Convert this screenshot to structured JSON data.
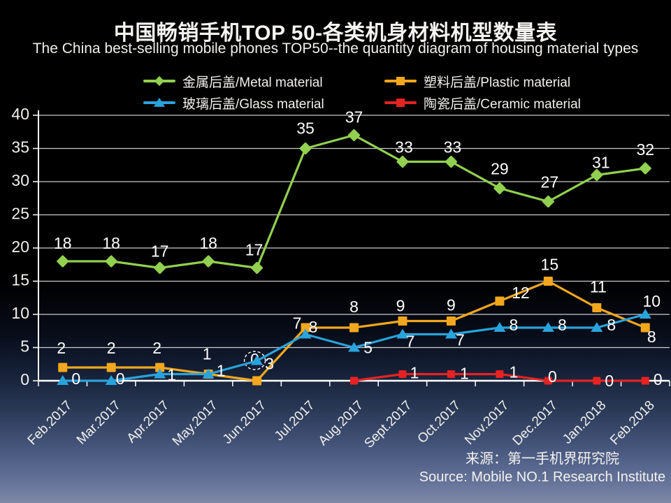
{
  "header": {
    "title": "中国畅销手机TOP 50-各类机身材料机型数量表",
    "subtitle": "The China best-selling mobile phones TOP50--the quantity diagram of housing material types"
  },
  "source": {
    "line1": "来源：第一手机界研究院",
    "line2": "Source: Mobile NO.1 Research Institute"
  },
  "colors": {
    "text": "#f2f0ec",
    "grid": "#eeeeee",
    "axis": "#ffffff",
    "background_bottom": "#7d89a6"
  },
  "chart_data": {
    "type": "line",
    "title": "中国畅销手机TOP 50-各类机身材料机型数量表",
    "subtitle": "The China best-selling mobile phones TOP50--the quantity diagram of housing material types",
    "categories": [
      "Feb.2017",
      "Mar.2017",
      "Apr.2017",
      "May.2017",
      "Jun.2017",
      "Jul.2017",
      "Aug.2017",
      "Sept.2017",
      "Oct.2017",
      "Nov.2017",
      "Dec.2017",
      "Jan.2018",
      "Feb.2018"
    ],
    "ylim": [
      0,
      40
    ],
    "ytick_step": 5,
    "grid": true,
    "legend_position": "top",
    "series": [
      {
        "key": "metal",
        "name": "金属后盖/Metal material",
        "color": "#92d050",
        "marker": "diamond",
        "start_index": 0,
        "values": [
          18,
          18,
          17,
          18,
          17,
          35,
          37,
          33,
          33,
          29,
          27,
          31,
          32
        ],
        "points": [
          {
            "v": 18,
            "label": "18",
            "dx": 0,
            "dy": -24
          },
          {
            "v": 18,
            "label": "18",
            "dx": 0,
            "dy": -24
          },
          {
            "v": 17,
            "label": "17",
            "dx": 0,
            "dy": -22
          },
          {
            "v": 18,
            "label": "18",
            "dx": 0,
            "dy": -24
          },
          {
            "v": 17,
            "label": "17",
            "dx": -4,
            "dy": -24
          },
          {
            "v": 35,
            "label": "35",
            "dx": 0,
            "dy": -27
          },
          {
            "v": 37,
            "label": "37",
            "dx": 0,
            "dy": -24
          },
          {
            "v": 33,
            "label": "33",
            "dx": 2,
            "dy": -19
          },
          {
            "v": 33,
            "label": "33",
            "dx": 2,
            "dy": -19
          },
          {
            "v": 29,
            "label": "29",
            "dx": 0,
            "dy": -26
          },
          {
            "v": 27,
            "label": "27",
            "dx": 2,
            "dy": -26
          },
          {
            "v": 31,
            "label": "31",
            "dx": 6,
            "dy": -16
          },
          {
            "v": 32,
            "label": "32",
            "dx": 0,
            "dy": -25
          }
        ]
      },
      {
        "key": "plastic",
        "name": "塑料后盖/Plastic material",
        "color": "#f2a71e",
        "marker": "square",
        "start_index": 0,
        "values": [
          2,
          2,
          2,
          1,
          0,
          8,
          8,
          9,
          9,
          12,
          15,
          11,
          8
        ],
        "points": [
          {
            "v": 2,
            "label": "2",
            "dx": -2,
            "dy": -26
          },
          {
            "v": 2,
            "label": "2",
            "dx": 0,
            "dy": -26
          },
          {
            "v": 2,
            "label": "2",
            "dx": -4,
            "dy": -26
          },
          {
            "v": 1,
            "label": "1",
            "dx": -2,
            "dy": -27
          },
          {
            "v": 0,
            "label": "0",
            "dx": -3,
            "dy": -29,
            "circled": true
          },
          {
            "v": 8,
            "label": "8",
            "dx": 11,
            "dy": 1
          },
          {
            "v": 8,
            "label": "8",
            "dx": 0,
            "dy": -28
          },
          {
            "v": 9,
            "label": "9",
            "dx": -3,
            "dy": -20
          },
          {
            "v": 9,
            "label": "9",
            "dx": 0,
            "dy": -21
          },
          {
            "v": 12,
            "label": "12",
            "dx": 30,
            "dy": -10
          },
          {
            "v": 15,
            "label": "15",
            "dx": 2,
            "dy": -22
          },
          {
            "v": 11,
            "label": "11",
            "dx": 2,
            "dy": -28
          },
          {
            "v": 8,
            "label": "8",
            "dx": 9,
            "dy": 15
          }
        ]
      },
      {
        "key": "glass",
        "name": "玻璃后盖/Glass material",
        "color": "#29a3dc",
        "marker": "triangle",
        "start_index": 0,
        "values": [
          0,
          0,
          1,
          1,
          3,
          7,
          5,
          7,
          7,
          8,
          8,
          8,
          10
        ],
        "points": [
          {
            "v": 0,
            "label": "0",
            "dx": 19,
            "dy": -1
          },
          {
            "v": 0,
            "label": "0",
            "dx": 13,
            "dy": -1
          },
          {
            "v": 1,
            "label": "1",
            "dx": 17,
            "dy": 3
          },
          {
            "v": 1,
            "label": "1",
            "dx": 18,
            "dy": -3
          },
          {
            "v": 3,
            "label": "3",
            "dx": 18,
            "dy": 6
          },
          {
            "v": 7,
            "label": "7",
            "dx": -12,
            "dy": -14
          },
          {
            "v": 5,
            "label": "5",
            "dx": 20,
            "dy": 2
          },
          {
            "v": 7,
            "label": "7",
            "dx": 11,
            "dy": 12
          },
          {
            "v": 7,
            "label": "7",
            "dx": 13,
            "dy": 10
          },
          {
            "v": 8,
            "label": "8",
            "dx": 20,
            "dy": -2
          },
          {
            "v": 8,
            "label": "8",
            "dx": 20,
            "dy": -2
          },
          {
            "v": 8,
            "label": "8",
            "dx": 21,
            "dy": -2
          },
          {
            "v": 10,
            "label": "10",
            "dx": 9,
            "dy": -17
          }
        ]
      },
      {
        "key": "ceramic",
        "name": "陶瓷后盖/Ceramic material",
        "color": "#e62222",
        "marker": "square",
        "start_index": 6,
        "values": [
          null,
          null,
          null,
          null,
          null,
          null,
          0,
          1,
          1,
          1,
          0,
          0,
          0
        ],
        "points": [
          {
            "v": 0,
            "label": null,
            "dx": 0,
            "dy": 0
          },
          {
            "v": 1,
            "label": "1",
            "dx": 17,
            "dy": 0
          },
          {
            "v": 1,
            "label": "1",
            "dx": 19,
            "dy": 1
          },
          {
            "v": 1,
            "label": "1",
            "dx": 20,
            "dy": -1
          },
          {
            "v": 0,
            "label": "0",
            "dx": 6,
            "dy": -4
          },
          {
            "v": 0,
            "label": "0",
            "dx": 18,
            "dy": 2
          },
          {
            "v": 0,
            "label": "0",
            "dx": 18,
            "dy": 0
          }
        ]
      }
    ]
  }
}
